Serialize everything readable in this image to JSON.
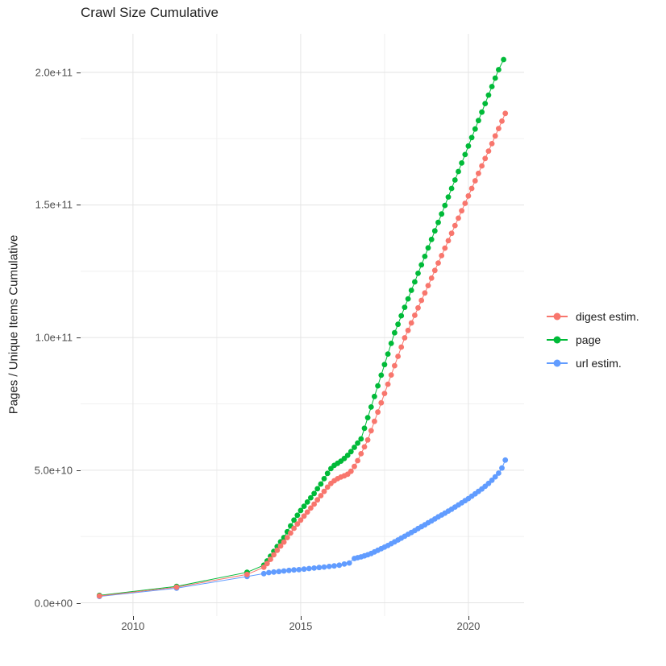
{
  "title": "Crawl Size Cumulative",
  "chart_data": {
    "type": "line",
    "title": "Crawl Size Cumulative",
    "xlabel": "",
    "ylabel": "Pages / Unique Items Cumulative",
    "grid": true,
    "legend_position": "right",
    "x_axis": {
      "range": [
        2008.44,
        2021.66
      ],
      "major_ticks": [
        2010,
        2015,
        2020
      ],
      "tick_labels": [
        "2010",
        "2015",
        "2020"
      ],
      "minor_ticks": [
        2012.5,
        2017.5
      ]
    },
    "y_axis": {
      "unit_note": "values stored in billions (1e9); axis shows scientific notation",
      "range_billions": [
        -5,
        214.5
      ],
      "major_ticks_billions": [
        0,
        50,
        100,
        150,
        200
      ],
      "tick_labels": [
        "0.0e+00",
        "5.0e+10",
        "1.0e+11",
        "1.5e+11",
        "2.0e+11"
      ],
      "minor_ticks_billions": [
        25,
        75,
        125,
        175
      ]
    },
    "style": {
      "major_grid_color": "#e4e4e4",
      "minor_grid_color": "#f0f0f0",
      "tick_color": "#333333",
      "tick_label_color": "#4d4d4d",
      "point_radius": 3.4
    },
    "series": [
      {
        "name": "digest estim.",
        "color": "#F8766D",
        "points": [
          [
            2009.0,
            2.6
          ],
          [
            2011.3,
            5.9
          ],
          [
            2013.4,
            10.7
          ],
          [
            2013.9,
            13.4
          ],
          [
            2014.0,
            14.8
          ],
          [
            2014.1,
            16.4
          ],
          [
            2014.2,
            18.1
          ],
          [
            2014.3,
            19.8
          ],
          [
            2014.4,
            21.4
          ],
          [
            2014.5,
            22.9
          ],
          [
            2014.6,
            24.6
          ],
          [
            2014.7,
            26.3
          ],
          [
            2014.8,
            28.1
          ],
          [
            2014.9,
            29.7
          ],
          [
            2015.0,
            31.2
          ],
          [
            2015.1,
            32.7
          ],
          [
            2015.2,
            34.2
          ],
          [
            2015.3,
            35.7
          ],
          [
            2015.4,
            37.2
          ],
          [
            2015.5,
            38.8
          ],
          [
            2015.6,
            40.4
          ],
          [
            2015.7,
            42.0
          ],
          [
            2015.8,
            43.6
          ],
          [
            2015.9,
            45.0
          ],
          [
            2016.0,
            46.0
          ],
          [
            2016.1,
            46.8
          ],
          [
            2016.2,
            47.4
          ],
          [
            2016.3,
            47.9
          ],
          [
            2016.4,
            48.5
          ],
          [
            2016.5,
            49.6
          ],
          [
            2016.6,
            51.4
          ],
          [
            2016.7,
            53.6
          ],
          [
            2016.8,
            56.2
          ],
          [
            2016.9,
            58.8
          ],
          [
            2017.0,
            61.4
          ],
          [
            2017.1,
            64.9
          ],
          [
            2017.2,
            68.4
          ],
          [
            2017.3,
            71.9
          ],
          [
            2017.4,
            75.4
          ],
          [
            2017.5,
            78.9
          ],
          [
            2017.6,
            82.4
          ],
          [
            2017.7,
            85.9
          ],
          [
            2017.8,
            89.4
          ],
          [
            2017.9,
            92.9
          ],
          [
            2018.0,
            96.4
          ],
          [
            2018.1,
            99.9
          ],
          [
            2018.2,
            102.7
          ],
          [
            2018.3,
            105.5
          ],
          [
            2018.4,
            108.4
          ],
          [
            2018.5,
            111.2
          ],
          [
            2018.6,
            114.0
          ],
          [
            2018.7,
            116.8
          ],
          [
            2018.8,
            119.6
          ],
          [
            2018.9,
            122.4
          ],
          [
            2019.0,
            125.3
          ],
          [
            2019.1,
            128.1
          ],
          [
            2019.2,
            130.9
          ],
          [
            2019.3,
            133.7
          ],
          [
            2019.4,
            136.5
          ],
          [
            2019.5,
            139.3
          ],
          [
            2019.6,
            142.2
          ],
          [
            2019.7,
            145.0
          ],
          [
            2019.8,
            147.8
          ],
          [
            2019.9,
            150.6
          ],
          [
            2020.0,
            153.4
          ],
          [
            2020.1,
            156.2
          ],
          [
            2020.2,
            159.1
          ],
          [
            2020.3,
            161.9
          ],
          [
            2020.4,
            164.7
          ],
          [
            2020.5,
            167.5
          ],
          [
            2020.6,
            170.3
          ],
          [
            2020.7,
            173.1
          ],
          [
            2020.8,
            176.0
          ],
          [
            2020.9,
            178.8
          ],
          [
            2021.0,
            181.6
          ],
          [
            2021.1,
            184.5
          ]
        ]
      },
      {
        "name": "page",
        "color": "#00BA38",
        "points": [
          [
            2009.0,
            2.8
          ],
          [
            2011.3,
            6.2
          ],
          [
            2013.4,
            11.5
          ],
          [
            2013.9,
            14.2
          ],
          [
            2014.0,
            15.8
          ],
          [
            2014.1,
            17.6
          ],
          [
            2014.2,
            19.4
          ],
          [
            2014.3,
            21.2
          ],
          [
            2014.4,
            23.0
          ],
          [
            2014.5,
            24.6
          ],
          [
            2014.6,
            26.8
          ],
          [
            2014.7,
            29.0
          ],
          [
            2014.8,
            31.2
          ],
          [
            2014.9,
            33.0
          ],
          [
            2015.0,
            34.8
          ],
          [
            2015.1,
            36.4
          ],
          [
            2015.2,
            38.0
          ],
          [
            2015.3,
            39.6
          ],
          [
            2015.4,
            41.2
          ],
          [
            2015.5,
            43.0
          ],
          [
            2015.6,
            44.8
          ],
          [
            2015.7,
            46.8
          ],
          [
            2015.8,
            48.8
          ],
          [
            2015.9,
            50.6
          ],
          [
            2016.0,
            51.8
          ],
          [
            2016.1,
            52.6
          ],
          [
            2016.2,
            53.4
          ],
          [
            2016.3,
            54.4
          ],
          [
            2016.4,
            55.6
          ],
          [
            2016.5,
            57.0
          ],
          [
            2016.6,
            58.6
          ],
          [
            2016.7,
            60.2
          ],
          [
            2016.8,
            61.8
          ],
          [
            2016.9,
            65.8
          ],
          [
            2017.0,
            69.8
          ],
          [
            2017.1,
            73.8
          ],
          [
            2017.2,
            77.8
          ],
          [
            2017.3,
            81.8
          ],
          [
            2017.4,
            85.8
          ],
          [
            2017.5,
            89.8
          ],
          [
            2017.6,
            93.8
          ],
          [
            2017.7,
            97.8
          ],
          [
            2017.8,
            101.8
          ],
          [
            2017.9,
            105.0
          ],
          [
            2018.0,
            108.2
          ],
          [
            2018.1,
            111.4
          ],
          [
            2018.2,
            114.6
          ],
          [
            2018.3,
            117.8
          ],
          [
            2018.4,
            121.0
          ],
          [
            2018.5,
            124.2
          ],
          [
            2018.6,
            127.4
          ],
          [
            2018.7,
            130.6
          ],
          [
            2018.8,
            133.8
          ],
          [
            2018.9,
            137.0
          ],
          [
            2019.0,
            140.2
          ],
          [
            2019.1,
            143.4
          ],
          [
            2019.2,
            146.6
          ],
          [
            2019.3,
            149.8
          ],
          [
            2019.4,
            153.0
          ],
          [
            2019.5,
            156.2
          ],
          [
            2019.6,
            159.4
          ],
          [
            2019.7,
            162.6
          ],
          [
            2019.8,
            165.8
          ],
          [
            2019.9,
            169.0
          ],
          [
            2020.0,
            172.2
          ],
          [
            2020.1,
            175.4
          ],
          [
            2020.2,
            178.6
          ],
          [
            2020.3,
            181.8
          ],
          [
            2020.4,
            185.0
          ],
          [
            2020.5,
            188.2
          ],
          [
            2020.6,
            191.4
          ],
          [
            2020.7,
            194.6
          ],
          [
            2020.8,
            197.8
          ],
          [
            2020.9,
            201.0
          ],
          [
            2021.05,
            204.8
          ]
        ]
      },
      {
        "name": "url estim.",
        "color": "#619CFF",
        "points": [
          [
            2009.0,
            2.4
          ],
          [
            2011.3,
            5.5
          ],
          [
            2013.4,
            9.9
          ],
          [
            2013.9,
            11.0
          ],
          [
            2014.05,
            11.4
          ],
          [
            2014.2,
            11.6
          ],
          [
            2014.35,
            11.8
          ],
          [
            2014.5,
            12.0
          ],
          [
            2014.65,
            12.2
          ],
          [
            2014.8,
            12.4
          ],
          [
            2014.95,
            12.5
          ],
          [
            2015.1,
            12.7
          ],
          [
            2015.25,
            12.9
          ],
          [
            2015.4,
            13.1
          ],
          [
            2015.55,
            13.3
          ],
          [
            2015.7,
            13.5
          ],
          [
            2015.85,
            13.7
          ],
          [
            2016.0,
            13.9
          ],
          [
            2016.15,
            14.2
          ],
          [
            2016.3,
            14.6
          ],
          [
            2016.45,
            15.0
          ],
          [
            2016.6,
            16.7
          ],
          [
            2016.7,
            17.0
          ],
          [
            2016.8,
            17.3
          ],
          [
            2016.9,
            17.7
          ],
          [
            2017.0,
            18.1
          ],
          [
            2017.1,
            18.6
          ],
          [
            2017.2,
            19.2
          ],
          [
            2017.3,
            19.8
          ],
          [
            2017.4,
            20.4
          ],
          [
            2017.5,
            21.0
          ],
          [
            2017.6,
            21.6
          ],
          [
            2017.7,
            22.3
          ],
          [
            2017.8,
            23.0
          ],
          [
            2017.9,
            23.7
          ],
          [
            2018.0,
            24.4
          ],
          [
            2018.1,
            25.1
          ],
          [
            2018.2,
            25.8
          ],
          [
            2018.3,
            26.5
          ],
          [
            2018.4,
            27.2
          ],
          [
            2018.5,
            28.0
          ],
          [
            2018.6,
            28.7
          ],
          [
            2018.7,
            29.4
          ],
          [
            2018.8,
            30.2
          ],
          [
            2018.9,
            30.9
          ],
          [
            2019.0,
            31.6
          ],
          [
            2019.1,
            32.4
          ],
          [
            2019.2,
            33.1
          ],
          [
            2019.3,
            33.8
          ],
          [
            2019.4,
            34.6
          ],
          [
            2019.5,
            35.3
          ],
          [
            2019.6,
            36.1
          ],
          [
            2019.7,
            36.9
          ],
          [
            2019.8,
            37.7
          ],
          [
            2019.9,
            38.5
          ],
          [
            2020.0,
            39.3
          ],
          [
            2020.1,
            40.2
          ],
          [
            2020.2,
            41.1
          ],
          [
            2020.3,
            42.0
          ],
          [
            2020.4,
            42.9
          ],
          [
            2020.5,
            43.9
          ],
          [
            2020.6,
            45.0
          ],
          [
            2020.7,
            46.2
          ],
          [
            2020.8,
            47.5
          ],
          [
            2020.9,
            48.9
          ],
          [
            2021.0,
            50.8
          ],
          [
            2021.1,
            53.8
          ]
        ]
      }
    ]
  },
  "legend": {
    "items": [
      {
        "label": "digest estim."
      },
      {
        "label": "page"
      },
      {
        "label": "url estim."
      }
    ]
  }
}
